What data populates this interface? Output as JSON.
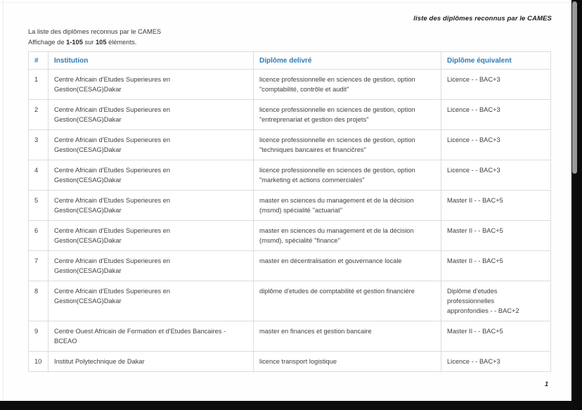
{
  "header": {
    "title": "liste des diplômes reconnus par le CAMES"
  },
  "main": {
    "caption": "La liste des diplômes reconnus par le CAMES",
    "pagination": {
      "prefix": "Affichage de ",
      "range": "1-105",
      "sur": " sur ",
      "total": "105",
      "suffix": " éléments."
    }
  },
  "table": {
    "columns": [
      "#",
      "Institution",
      "Diplôme delivré",
      "Diplôme équivalent"
    ],
    "rows": [
      {
        "num": "1",
        "institution": "Centre Africain d'Etudes Superieures en\nGestion(CESAG)Dakar",
        "diplome": "licence professionnelle en sciences de gestion, option\n\"comptabilité, contrôle et audit\"",
        "equivalent": "Licence - - BAC+3"
      },
      {
        "num": "2",
        "institution": "Centre Africain d'Etudes Superieures en\nGestion(CESAG)Dakar",
        "diplome": "licence professionnelle en sciences de gestion, option\n\"entreprenariat et gestion des projets\"",
        "equivalent": "Licence - - BAC+3"
      },
      {
        "num": "3",
        "institution": "Centre Africain d'Etudes Superieures en\nGestion(CESAG)Dakar",
        "diplome": "licence professionnelle en sciences de gestion, option\n\"techniques bancaires et financičres\"",
        "equivalent": "Licence - - BAC+3"
      },
      {
        "num": "4",
        "institution": "Centre Africain d'Etudes Superieures en\nGestion(CESAG)Dakar",
        "diplome": "licence professionnelle en sciences de gestion, option\n\"marketing et actions commerciales\"",
        "equivalent": "Licence - - BAC+3"
      },
      {
        "num": "5",
        "institution": "Centre Africain d'Etudes Superieures en\nGestion(CESAG)Dakar",
        "diplome": "master en sciences du management et de la décision\n(msmd) spécialité ''actuariat''",
        "equivalent": "Master II - - BAC+5"
      },
      {
        "num": "6",
        "institution": "Centre Africain d'Etudes Superieures en\nGestion(CESAG)Dakar",
        "diplome": "master en sciences du management et de la décision\n(msmd), spécialité ''finance''",
        "equivalent": "Master II - - BAC+5"
      },
      {
        "num": "7",
        "institution": "Centre Africain d'Etudes Superieures en\nGestion(CESAG)Dakar",
        "diplome": "master en décentralisation et gouvernance locale",
        "equivalent": "Master II - - BAC+5"
      },
      {
        "num": "8",
        "institution": "Centre Africain d'Etudes Superieures en\nGestion(CESAG)Dakar",
        "diplome": "diplôme d'etudes de comptabilité et gestion financiére",
        "equivalent": "Diplôme d'etudes\nprofessionnelles\nappronfondies - - BAC+2"
      },
      {
        "num": "9",
        "institution": "Centre Ouest Africain de Formation et d'Etudes Bancaires -\nBCEAO",
        "diplome": "master en finances et gestion bancaire",
        "equivalent": "Master II - - BAC+5"
      },
      {
        "num": "10",
        "institution": "Institut Polytechnique de Dakar",
        "diplome": "licence transport logistique",
        "equivalent": "Licence - - BAC+3"
      }
    ]
  },
  "footer": {
    "page_number": "1"
  },
  "colors": {
    "column_header_text": "#2f7cb8",
    "table_border": "#dcdcdc",
    "body_text": "#3f3f3f",
    "frame_background": "#0c0c0c",
    "scrollbar_thumb": "#9a9a9a"
  }
}
